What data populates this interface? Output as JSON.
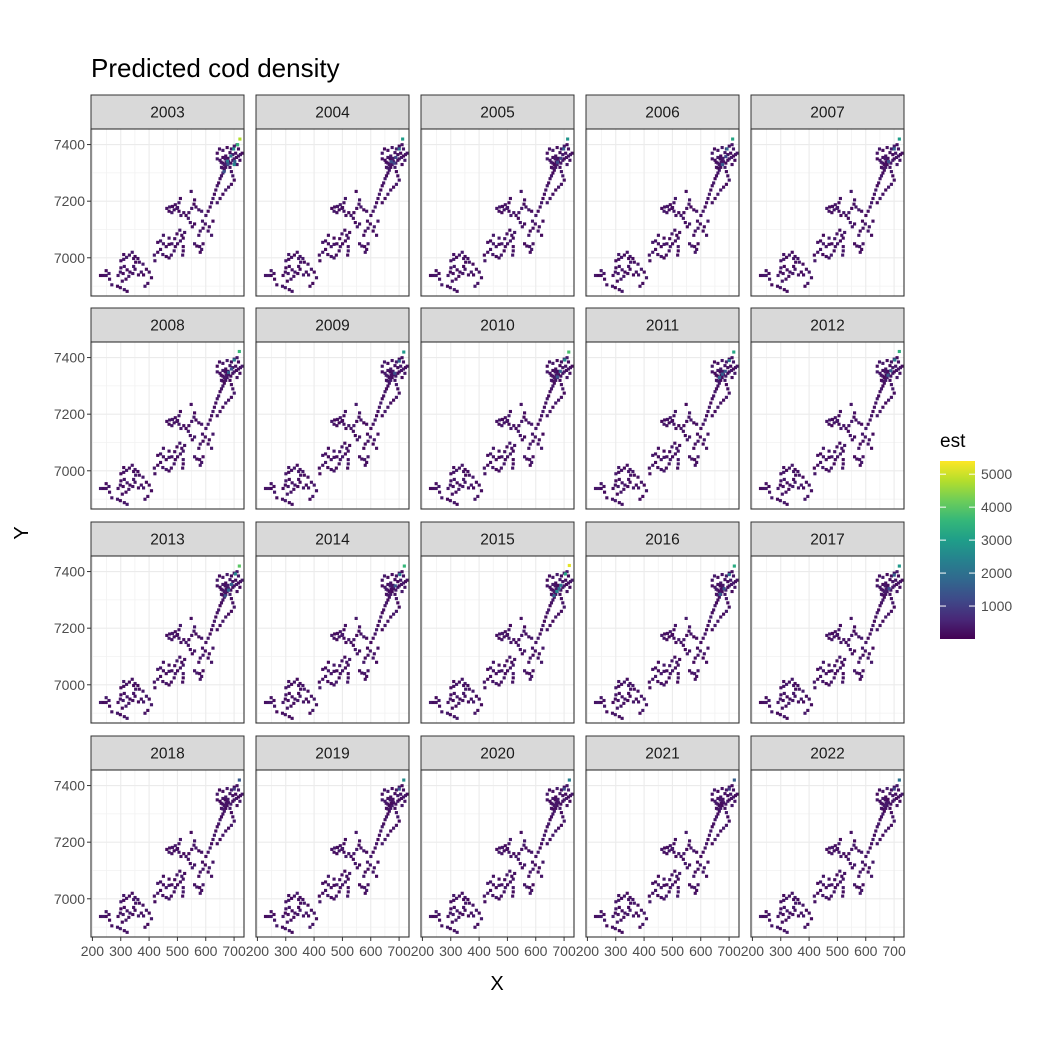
{
  "chart_data": {
    "type": "heatmap",
    "title": "Predicted cod density",
    "xlabel": "X",
    "ylabel": "Y",
    "facets": [
      "2003",
      "2004",
      "2005",
      "2006",
      "2007",
      "2008",
      "2009",
      "2010",
      "2011",
      "2012",
      "2013",
      "2014",
      "2015",
      "2016",
      "2017",
      "2018",
      "2019",
      "2020",
      "2021",
      "2022"
    ],
    "xlim": [
      195,
      735
    ],
    "ylim": [
      6865,
      7455
    ],
    "x_ticks": [
      200,
      300,
      400,
      500,
      600,
      700
    ],
    "x_tick_labels": [
      "200",
      "300",
      "400",
      "500",
      "600",
      "700"
    ],
    "y_ticks": [
      7000,
      7200,
      7400
    ],
    "y_tick_labels": [
      "7000",
      "7200",
      "7400"
    ],
    "grid": true,
    "legend": {
      "title": "est",
      "position": "right",
      "ticks": [
        1000,
        2000,
        3000,
        4000,
        5000
      ],
      "tick_labels": [
        "1000",
        "2000",
        "3000",
        "4000",
        "5000"
      ],
      "range": [
        0,
        5400
      ],
      "palette": [
        "#440154",
        "#482878",
        "#3e4a89",
        "#31688e",
        "#26828e",
        "#1f9e89",
        "#35b779",
        "#6dcd59",
        "#b4de2c",
        "#fde725"
      ]
    },
    "base_cells": [
      [
        228,
        6938
      ],
      [
        238,
        6938
      ],
      [
        248,
        6938
      ],
      [
        258,
        6945
      ],
      [
        248,
        6955
      ],
      [
        260,
        6925
      ],
      [
        268,
        6905
      ],
      [
        288,
        6900
      ],
      [
        298,
        6895
      ],
      [
        290,
        6938
      ],
      [
        298,
        6950
      ],
      [
        308,
        6945
      ],
      [
        300,
        6965
      ],
      [
        312,
        6970
      ],
      [
        322,
        6958
      ],
      [
        332,
        6950
      ],
      [
        342,
        6945
      ],
      [
        328,
        6935
      ],
      [
        318,
        6925
      ],
      [
        305,
        6918
      ],
      [
        312,
        6888
      ],
      [
        322,
        6882
      ],
      [
        300,
        6990
      ],
      [
        310,
        6995
      ],
      [
        320,
        7002
      ],
      [
        310,
        7012
      ],
      [
        330,
        7010
      ],
      [
        340,
        7020
      ],
      [
        350,
        7005
      ],
      [
        360,
        6998
      ],
      [
        365,
        6985
      ],
      [
        378,
        6978
      ],
      [
        390,
        6960
      ],
      [
        400,
        6950
      ],
      [
        372,
        6950
      ],
      [
        380,
        6940
      ],
      [
        362,
        6940
      ],
      [
        350,
        6960
      ],
      [
        345,
        6970
      ],
      [
        408,
        6930
      ],
      [
        395,
        6910
      ],
      [
        385,
        6900
      ],
      [
        352,
        6985
      ],
      [
        345,
        6998
      ],
      [
        420,
        6990
      ],
      [
        418,
        7010
      ],
      [
        430,
        7020
      ],
      [
        440,
        7030
      ],
      [
        448,
        7012
      ],
      [
        460,
        7005
      ],
      [
        470,
        7000
      ],
      [
        478,
        7010
      ],
      [
        488,
        7025
      ],
      [
        492,
        7040
      ],
      [
        500,
        7050
      ],
      [
        510,
        7060
      ],
      [
        520,
        7070
      ],
      [
        515,
        7080
      ],
      [
        525,
        7090
      ],
      [
        508,
        7098
      ],
      [
        498,
        7085
      ],
      [
        490,
        7068
      ],
      [
        480,
        7050
      ],
      [
        470,
        7048
      ],
      [
        460,
        7040
      ],
      [
        450,
        7050
      ],
      [
        440,
        7060
      ],
      [
        430,
        7055
      ],
      [
        470,
        7070
      ],
      [
        450,
        7080
      ],
      [
        520,
        7040
      ],
      [
        520,
        7025
      ],
      [
        518,
        7010
      ],
      [
        560,
        7050
      ],
      [
        568,
        7042
      ],
      [
        578,
        7040
      ],
      [
        585,
        7030
      ],
      [
        580,
        7020
      ],
      [
        590,
        7050
      ],
      [
        575,
        7080
      ],
      [
        580,
        7095
      ],
      [
        590,
        7105
      ],
      [
        598,
        7120
      ],
      [
        588,
        7130
      ],
      [
        560,
        7120
      ],
      [
        552,
        7110
      ],
      [
        545,
        7125
      ],
      [
        538,
        7140
      ],
      [
        530,
        7150
      ],
      [
        522,
        7160
      ],
      [
        512,
        7150
      ],
      [
        505,
        7165
      ],
      [
        498,
        7175
      ],
      [
        488,
        7170
      ],
      [
        480,
        7160
      ],
      [
        470,
        7165
      ],
      [
        462,
        7175
      ],
      [
        472,
        7180
      ],
      [
        482,
        7182
      ],
      [
        492,
        7188
      ],
      [
        500,
        7178
      ],
      [
        505,
        7195
      ],
      [
        510,
        7210
      ],
      [
        540,
        7160
      ],
      [
        550,
        7175
      ],
      [
        558,
        7190
      ],
      [
        565,
        7180
      ],
      [
        575,
        7170
      ],
      [
        585,
        7165
      ],
      [
        560,
        7205
      ],
      [
        548,
        7235
      ],
      [
        600,
        7150
      ],
      [
        608,
        7165
      ],
      [
        615,
        7180
      ],
      [
        620,
        7195
      ],
      [
        625,
        7210
      ],
      [
        630,
        7225
      ],
      [
        635,
        7240
      ],
      [
        640,
        7255
      ],
      [
        645,
        7265
      ],
      [
        650,
        7280
      ],
      [
        655,
        7290
      ],
      [
        660,
        7300
      ],
      [
        665,
        7310
      ],
      [
        670,
        7320
      ],
      [
        675,
        7330
      ],
      [
        680,
        7340
      ],
      [
        688,
        7335
      ],
      [
        695,
        7345
      ],
      [
        700,
        7350
      ],
      [
        708,
        7355
      ],
      [
        715,
        7360
      ],
      [
        722,
        7365
      ],
      [
        728,
        7370
      ],
      [
        720,
        7345
      ],
      [
        710,
        7330
      ],
      [
        655,
        7320
      ],
      [
        660,
        7335
      ],
      [
        650,
        7345
      ],
      [
        640,
        7350
      ],
      [
        660,
        7355
      ],
      [
        670,
        7360
      ],
      [
        675,
        7345
      ],
      [
        665,
        7330
      ],
      [
        685,
        7320
      ],
      [
        690,
        7305
      ],
      [
        695,
        7290
      ],
      [
        700,
        7275
      ],
      [
        690,
        7260
      ],
      [
        680,
        7250
      ],
      [
        670,
        7240
      ],
      [
        660,
        7225
      ],
      [
        650,
        7210
      ],
      [
        640,
        7195
      ],
      [
        625,
        7130
      ],
      [
        612,
        7110
      ],
      [
        608,
        7095
      ],
      [
        620,
        7080
      ],
      [
        640,
        7370
      ],
      [
        648,
        7385
      ],
      [
        660,
        7380
      ],
      [
        675,
        7390
      ],
      [
        690,
        7385
      ],
      [
        700,
        7395
      ],
      [
        710,
        7400
      ],
      [
        715,
        7385
      ],
      [
        705,
        7370
      ],
      [
        695,
        7365
      ],
      [
        685,
        7372
      ],
      [
        660,
        7318
      ],
      [
        668,
        7350
      ],
      [
        672,
        7338
      ],
      [
        678,
        7352
      ],
      [
        654,
        7338
      ]
    ],
    "hot_cells_by_year": [
      [
        [
          720,
          7420,
          4800
        ],
        [
          712,
          7400,
          3600
        ],
        [
          698,
          7385,
          2600
        ],
        [
          700,
          7330,
          2600
        ],
        [
          688,
          7360,
          2200
        ],
        [
          702,
          7340,
          1700
        ],
        [
          676,
          7342,
          2200
        ],
        [
          664,
          7305,
          1400
        ],
        [
          678,
          7332,
          1500
        ]
      ],
      [
        [
          712,
          7420,
          3000
        ],
        [
          700,
          7385,
          1800
        ],
        [
          688,
          7355,
          1200
        ],
        [
          682,
          7335,
          1100
        ],
        [
          672,
          7340,
          1300
        ]
      ],
      [
        [
          712,
          7420,
          2800
        ],
        [
          698,
          7385,
          1600
        ],
        [
          688,
          7352,
          1100
        ],
        [
          676,
          7338,
          1200
        ]
      ],
      [
        [
          712,
          7420,
          3200
        ],
        [
          692,
          7385,
          1800
        ],
        [
          676,
          7330,
          1500
        ],
        [
          688,
          7358,
          1200
        ]
      ],
      [
        [
          718,
          7420,
          3000
        ],
        [
          700,
          7385,
          1700
        ],
        [
          680,
          7340,
          1300
        ]
      ],
      [
        [
          718,
          7422,
          3600
        ],
        [
          700,
          7392,
          2200
        ],
        [
          680,
          7348,
          1600
        ],
        [
          690,
          7360,
          1400
        ]
      ],
      [
        [
          716,
          7420,
          2900
        ],
        [
          700,
          7388,
          1700
        ],
        [
          684,
          7345,
          1300
        ]
      ],
      [
        [
          716,
          7420,
          3800
        ],
        [
          702,
          7392,
          2500
        ],
        [
          686,
          7352,
          1700
        ],
        [
          676,
          7332,
          1400
        ]
      ],
      [
        [
          716,
          7420,
          3200
        ],
        [
          700,
          7390,
          2000
        ],
        [
          686,
          7352,
          1500
        ],
        [
          666,
          7330,
          1800
        ],
        [
          676,
          7342,
          1600
        ]
      ],
      [
        [
          718,
          7422,
          3400
        ],
        [
          702,
          7392,
          2200
        ],
        [
          688,
          7354,
          1600
        ],
        [
          678,
          7338,
          1500
        ]
      ],
      [
        [
          718,
          7420,
          4000
        ],
        [
          704,
          7392,
          2500
        ],
        [
          690,
          7355,
          1700
        ],
        [
          680,
          7335,
          1800
        ],
        [
          668,
          7315,
          1400
        ]
      ],
      [
        [
          718,
          7420,
          3600
        ],
        [
          702,
          7390,
          2200
        ],
        [
          686,
          7350,
          1500
        ]
      ],
      [
        [
          718,
          7422,
          5200
        ],
        [
          704,
          7392,
          3200
        ],
        [
          688,
          7352,
          2200
        ],
        [
          674,
          7330,
          2600
        ],
        [
          664,
          7315,
          1800
        ],
        [
          682,
          7340,
          2000
        ]
      ],
      [
        [
          718,
          7420,
          3300
        ],
        [
          700,
          7390,
          2000
        ],
        [
          682,
          7340,
          1500
        ],
        [
          668,
          7320,
          1600
        ]
      ],
      [
        [
          718,
          7420,
          2900
        ],
        [
          700,
          7388,
          1600
        ],
        [
          682,
          7340,
          1200
        ]
      ],
      [
        [
          718,
          7420,
          1500
        ],
        [
          700,
          7388,
          900
        ]
      ],
      [
        [
          716,
          7420,
          2600
        ],
        [
          700,
          7388,
          1400
        ]
      ],
      [
        [
          718,
          7420,
          2300
        ],
        [
          700,
          7388,
          1200
        ]
      ],
      [
        [
          718,
          7420,
          1600
        ],
        [
          700,
          7388,
          900
        ]
      ],
      [
        [
          718,
          7420,
          2000
        ],
        [
          700,
          7388,
          1100
        ]
      ]
    ]
  }
}
